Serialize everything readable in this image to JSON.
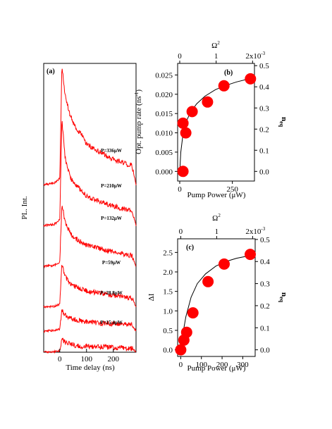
{
  "chart_data": [
    {
      "type": "line",
      "panel": "(a)",
      "xlabel": "Time delay (ns)",
      "ylabel": "PL. Int.",
      "xlim": [
        -60,
        285
      ],
      "xticks": [
        0,
        100,
        200
      ],
      "series": [
        {
          "name": "P=336μW",
          "x": [
            -60,
            -20,
            0,
            8,
            20,
            40,
            60,
            80,
            100,
            150,
            200,
            250,
            270,
            285
          ],
          "y": [
            0.0,
            0.01,
            0.05,
            1.0,
            0.75,
            0.57,
            0.47,
            0.42,
            0.34,
            0.27,
            0.21,
            0.17,
            0.16,
            0.0
          ]
        },
        {
          "name": "P=210μW",
          "x": [
            -60,
            -20,
            0,
            8,
            20,
            40,
            60,
            80,
            100,
            150,
            200,
            250,
            270,
            285
          ],
          "y": [
            0.0,
            0.01,
            0.05,
            0.94,
            0.6,
            0.42,
            0.36,
            0.31,
            0.26,
            0.21,
            0.17,
            0.14,
            0.13,
            0.0
          ]
        },
        {
          "name": "P=132μW",
          "x": [
            -60,
            -20,
            0,
            8,
            20,
            40,
            60,
            80,
            100,
            150,
            200,
            250,
            270,
            285
          ],
          "y": [
            0.0,
            0.01,
            0.05,
            0.72,
            0.5,
            0.37,
            0.31,
            0.28,
            0.24,
            0.2,
            0.16,
            0.13,
            0.12,
            0.0
          ]
        },
        {
          "name": "P=59μW",
          "x": [
            -60,
            -20,
            0,
            8,
            20,
            40,
            60,
            80,
            100,
            150,
            200,
            250,
            270,
            285
          ],
          "y": [
            0.0,
            0.01,
            0.04,
            0.57,
            0.4,
            0.3,
            0.26,
            0.23,
            0.21,
            0.18,
            0.15,
            0.13,
            0.12,
            0.0
          ]
        },
        {
          "name": "P=28.8μW",
          "x": [
            -60,
            -20,
            0,
            8,
            20,
            40,
            60,
            80,
            100,
            150,
            200,
            250,
            270,
            285
          ],
          "y": [
            0.0,
            0.01,
            0.03,
            0.32,
            0.24,
            0.19,
            0.17,
            0.15,
            0.14,
            0.12,
            0.11,
            0.1,
            0.09,
            0.0
          ]
        },
        {
          "name": "P=15.4μW",
          "x": [
            -60,
            -20,
            0,
            8,
            20,
            40,
            60,
            80,
            100,
            150,
            200,
            250,
            270,
            285
          ],
          "y": [
            0.0,
            0.01,
            0.02,
            0.2,
            0.15,
            0.12,
            0.1,
            0.09,
            0.09,
            0.08,
            0.07,
            0.06,
            0.06,
            0.0
          ]
        }
      ]
    },
    {
      "type": "scatter",
      "panel": "(b)",
      "xlabel": "Pump Power (μW)",
      "ylabel": "Opt. pump rate (ns",
      "ylabel_sup": "-1",
      "ylabel_end": ")",
      "ylabel_right": "n",
      "ylabel_right_sub": "eq",
      "xlabel_top": "Ω",
      "xlabel_top_sup": "2",
      "xlim": [
        -10,
        355
      ],
      "ylim": [
        -0.0025,
        0.028
      ],
      "ylim_right": [
        -0.0456,
        0.5107
      ],
      "xticks": [
        "0",
        "250"
      ],
      "yticks": [
        "0.000",
        "0.005",
        "0.010",
        "0.015",
        "0.020",
        "0.025"
      ],
      "yticks_right": [
        "0.0",
        "0.1",
        "0.2",
        "0.3",
        "0.4",
        "0.5"
      ],
      "top_ticks": [
        "0",
        "1",
        "2x10"
      ],
      "top_tick_sup": "-3",
      "top_tick_values": [
        0,
        1,
        2
      ],
      "top_lim": [
        -0.0578,
        2.052
      ],
      "points": {
        "x": [
          15.4,
          28.8,
          15.4,
          59,
          132,
          210,
          336
        ],
        "y": [
          0.0,
          0.01,
          0.0125,
          0.0155,
          0.018,
          0.0222,
          0.024
        ]
      },
      "fit": {
        "label": "",
        "x": [
          0,
          5,
          15,
          30,
          50,
          80,
          120,
          170,
          220,
          270,
          336
        ],
        "y": [
          0.0,
          0.005,
          0.0095,
          0.0128,
          0.0152,
          0.0175,
          0.0195,
          0.0212,
          0.0223,
          0.0232,
          0.0241
        ]
      }
    },
    {
      "type": "scatter",
      "panel": "(c)",
      "xlabel": "Pump Power (μW)",
      "ylabel": "ΔI",
      "ylabel_right": "n",
      "ylabel_right_sub": "eq",
      "xlabel_top": "Ω",
      "xlabel_top_sup": "2",
      "xlim": [
        -15,
        360
      ],
      "ylim": [
        -0.17,
        2.85
      ],
      "ylim_right": [
        -0.03,
        0.5029
      ],
      "xticks": [
        "0",
        "100",
        "200",
        "300"
      ],
      "yticks": [
        "0.0",
        "0.5",
        "1.0",
        "1.5",
        "2.0",
        "2.5"
      ],
      "yticks_right": [
        "0.0",
        "0.1",
        "0.2",
        "0.3",
        "0.4",
        "0.5"
      ],
      "top_ticks": [
        "0",
        "1",
        "2x10"
      ],
      "top_tick_sup": "-3",
      "top_tick_values": [
        0,
        1,
        2
      ],
      "top_lim": [
        -0.0865,
        2.071
      ],
      "points": {
        "x": [
          0,
          15.4,
          28.8,
          59,
          132,
          210,
          336
        ],
        "y": [
          0.0,
          0.25,
          0.45,
          0.95,
          1.75,
          2.2,
          2.45
        ]
      },
      "fit": {
        "label": "",
        "x": [
          0,
          10,
          25,
          50,
          80,
          120,
          170,
          220,
          270,
          336
        ],
        "y": [
          0.0,
          0.4,
          0.85,
          1.35,
          1.7,
          1.95,
          2.15,
          2.27,
          2.35,
          2.42
        ]
      }
    }
  ]
}
